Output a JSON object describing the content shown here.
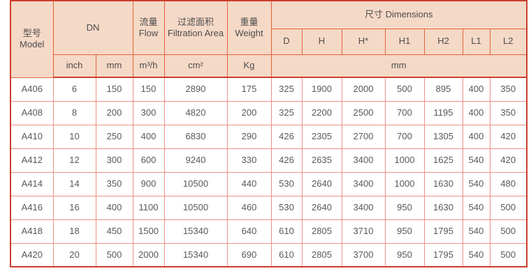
{
  "colors": {
    "header_bg": "#f5d9c7",
    "border_header": "#e2613c",
    "border_outer": "#c9402c",
    "border_data": "#ee9184",
    "text_header": "#4d4d4d",
    "text_data": "#595959",
    "page_bg": "#ffffff"
  },
  "table": {
    "header": {
      "model_cn": "型号",
      "model_en": "Model",
      "dn": "DN",
      "flow_cn": "流量",
      "flow_en": "Flow",
      "filtration_cn": "过滤面积",
      "filtration_en": "Filtration Area",
      "weight_cn": "重量",
      "weight_en": "Weight",
      "dimensions": "尺寸 Dimensions",
      "dim_cols": [
        "D",
        "H",
        "H*",
        "H1",
        "H2",
        "L1",
        "L2"
      ],
      "units": {
        "inch": "inch",
        "mm": "mm",
        "flow": "m³/h",
        "area": "cm²",
        "weight": "Kg",
        "dims_mm": "mm"
      }
    },
    "rows": [
      {
        "model": "A406",
        "inch": "6",
        "mm": "150",
        "flow": "150",
        "area": "2890",
        "weight": "175",
        "dims": [
          "325",
          "1900",
          "2000",
          "500",
          "895",
          "400",
          "350"
        ]
      },
      {
        "model": "A408",
        "inch": "8",
        "mm": "200",
        "flow": "300",
        "area": "4820",
        "weight": "200",
        "dims": [
          "325",
          "2200",
          "2500",
          "700",
          "1195",
          "400",
          "350"
        ]
      },
      {
        "model": "A410",
        "inch": "10",
        "mm": "250",
        "flow": "400",
        "area": "6830",
        "weight": "290",
        "dims": [
          "426",
          "2305",
          "2700",
          "700",
          "1305",
          "400",
          "420"
        ]
      },
      {
        "model": "A412",
        "inch": "12",
        "mm": "300",
        "flow": "600",
        "area": "9240",
        "weight": "330",
        "dims": [
          "426",
          "2635",
          "3400",
          "1000",
          "1625",
          "540",
          "420"
        ]
      },
      {
        "model": "A414",
        "inch": "14",
        "mm": "350",
        "flow": "900",
        "area": "10500",
        "weight": "440",
        "dims": [
          "530",
          "2640",
          "3400",
          "1000",
          "1630",
          "540",
          "480"
        ]
      },
      {
        "model": "A416",
        "inch": "16",
        "mm": "400",
        "flow": "1100",
        "area": "10500",
        "weight": "460",
        "dims": [
          "530",
          "2640",
          "3400",
          "950",
          "1630",
          "540",
          "500"
        ]
      },
      {
        "model": "A418",
        "inch": "18",
        "mm": "450",
        "flow": "1500",
        "area": "15340",
        "weight": "640",
        "dims": [
          "610",
          "2805",
          "3710",
          "950",
          "1795",
          "540",
          "500"
        ]
      },
      {
        "model": "A420",
        "inch": "20",
        "mm": "500",
        "flow": "2000",
        "area": "15340",
        "weight": "690",
        "dims": [
          "610",
          "2805",
          "3700",
          "950",
          "1795",
          "540",
          "500"
        ]
      }
    ]
  }
}
